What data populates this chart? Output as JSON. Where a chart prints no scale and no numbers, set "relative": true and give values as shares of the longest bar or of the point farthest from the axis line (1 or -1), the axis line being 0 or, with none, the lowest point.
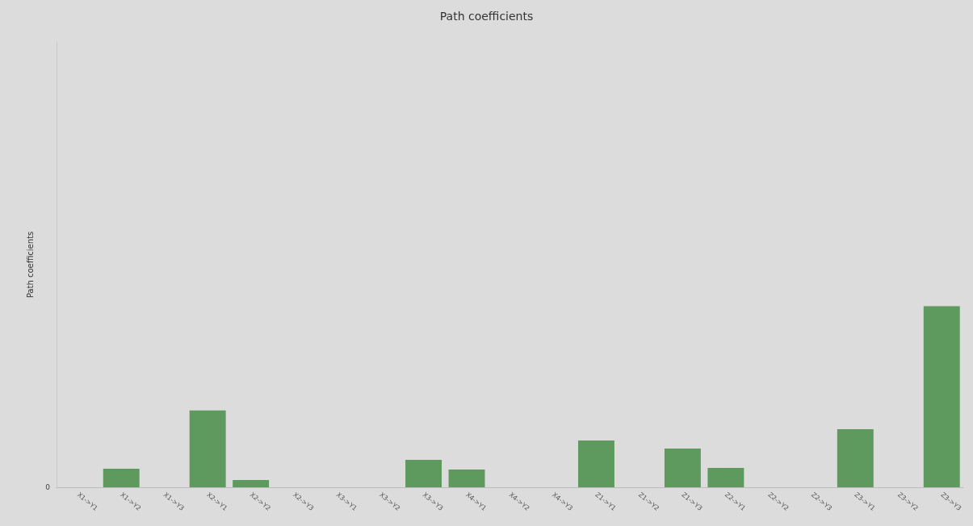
{
  "chart_data": {
    "type": "bar",
    "title": "Path coefficients",
    "ylabel": "Path coefficients",
    "relative": true,
    "categories": [
      "X1->Y1",
      "X1->Y2",
      "X1->Y3",
      "X2->Y1",
      "X2->Y2",
      "X2->Y3",
      "X3->Y1",
      "X3->Y2",
      "X3->Y3",
      "X4->Y1",
      "X4->Y2",
      "X4->Y3",
      "Z1->Y1",
      "Z1->Y2",
      "Z1->Y3",
      "Z2->Y1",
      "Z2->Y2",
      "Z2->Y3",
      "Z3->Y1",
      "Z3->Y2",
      "Z3->Y3"
    ],
    "values": [
      0,
      0.103,
      0,
      0.424,
      0.04,
      0,
      0,
      0,
      0.152,
      0.098,
      0,
      0,
      0.259,
      0,
      0.214,
      0.107,
      0,
      0,
      0.321,
      0,
      1
    ],
    "color": "#5e9a5e",
    "annotations": [
      "0"
    ],
    "grid": false
  }
}
